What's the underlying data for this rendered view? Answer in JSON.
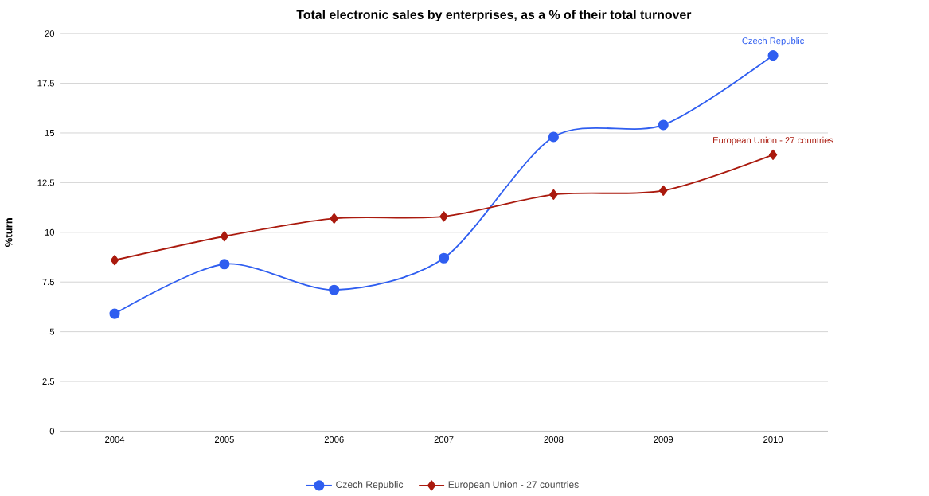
{
  "chart_data": {
    "type": "line",
    "title": "Total electronic sales by enterprises, as a % of their total turnover",
    "ylabel": "%turn",
    "categories": [
      "2004",
      "2005",
      "2006",
      "2007",
      "2008",
      "2009",
      "2010"
    ],
    "series": [
      {
        "name": "Czech Republic",
        "color": "#2f5ef0",
        "marker": "circle",
        "values": [
          5.9,
          8.4,
          7.1,
          8.7,
          14.8,
          15.4,
          18.9
        ]
      },
      {
        "name": "European Union - 27 countries",
        "color": "#aa1a0e",
        "marker": "diamond",
        "values": [
          8.6,
          9.8,
          10.7,
          10.8,
          11.9,
          12.1,
          13.9
        ]
      }
    ],
    "ylim": [
      0,
      20
    ],
    "yticks": [
      0,
      2.5,
      5,
      7.5,
      10,
      12.5,
      15,
      17.5,
      20
    ],
    "grid": "y",
    "legend": "bottom"
  }
}
